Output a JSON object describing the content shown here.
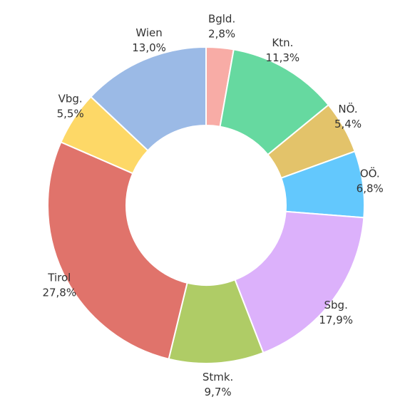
{
  "chart_data": {
    "type": "donut",
    "categories": [
      "Bgld.",
      "Ktn.",
      "NÖ.",
      "OÖ.",
      "Sbg.",
      "Stmk.",
      "Tirol",
      "Vbg.",
      "Wien"
    ],
    "values": [
      2.8,
      11.3,
      5.4,
      6.8,
      17.9,
      9.7,
      27.8,
      5.5,
      13.0
    ],
    "value_labels": [
      "2,8%",
      "11,3%",
      "5,4%",
      "6,8%",
      "17,9%",
      "9,7%",
      "27,8%",
      "5,5%",
      "13,0%"
    ],
    "colors": [
      "#f8aca6",
      "#66d9a0",
      "#e3c36a",
      "#63c8fd",
      "#dcb1fb",
      "#afcc66",
      "#e0736b",
      "#fdd867",
      "#9bbae6"
    ]
  }
}
